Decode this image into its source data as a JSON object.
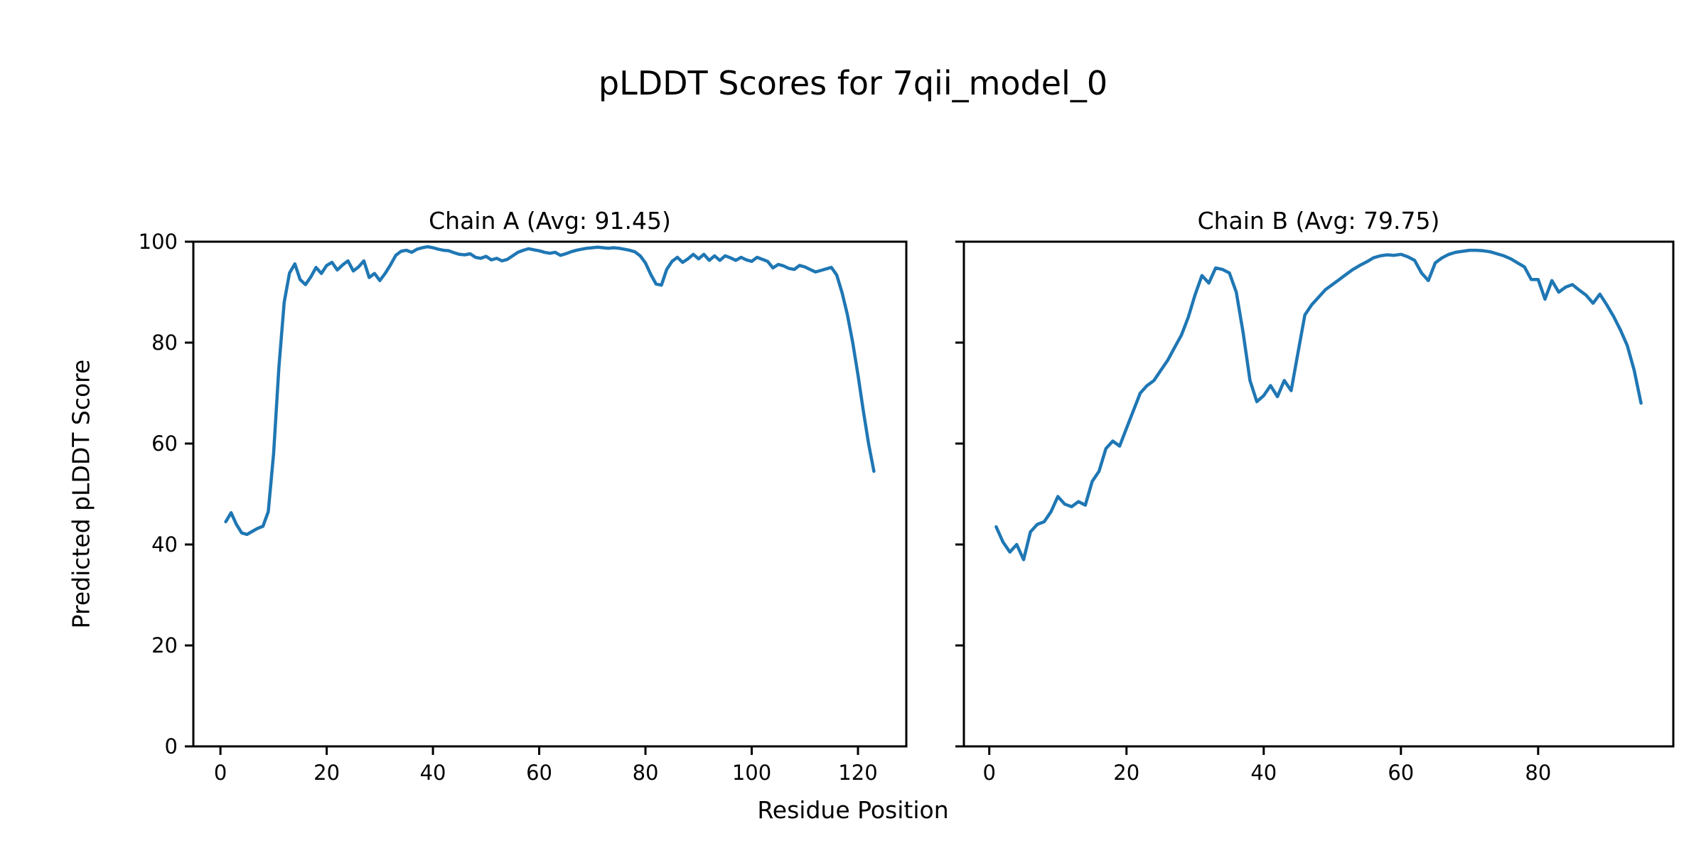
{
  "figure": {
    "title": "pLDDT Scores for 7qii_model_0",
    "xlabel": "Residue Position",
    "ylabel": "Predicted pLDDT Score",
    "line_color": "#1f77b4",
    "axis_color": "#000000",
    "background_color": "#ffffff"
  },
  "chart_data": [
    {
      "type": "line",
      "chain": "A",
      "title": "Chain A (Avg: 91.45)",
      "avg_plddt": 91.45,
      "xlabel": "Residue Position",
      "ylabel": "Predicted pLDDT Score",
      "xlim": [
        -5.1,
        129.1
      ],
      "ylim": [
        0,
        100
      ],
      "xticks": [
        0,
        20,
        40,
        60,
        80,
        100,
        120
      ],
      "yticks": [
        0,
        20,
        40,
        60,
        80,
        100
      ],
      "show_ytick_labels": true,
      "grid": false,
      "legend": "none",
      "x_start": 1,
      "x_step": 1,
      "values": [
        44.5,
        46.3,
        44.0,
        42.3,
        42.0,
        42.6,
        43.2,
        43.6,
        46.5,
        58.0,
        75.0,
        88.0,
        93.8,
        95.6,
        92.5,
        91.5,
        93.0,
        94.9,
        93.7,
        95.3,
        95.9,
        94.4,
        95.4,
        96.2,
        94.2,
        95.0,
        96.2,
        92.9,
        93.7,
        92.3,
        93.7,
        95.4,
        97.3,
        98.1,
        98.3,
        97.9,
        98.5,
        98.8,
        99.0,
        98.8,
        98.5,
        98.3,
        98.2,
        97.8,
        97.5,
        97.4,
        97.6,
        96.9,
        96.7,
        97.1,
        96.4,
        96.7,
        96.2,
        96.5,
        97.2,
        97.9,
        98.3,
        98.6,
        98.4,
        98.2,
        97.9,
        97.7,
        97.9,
        97.3,
        97.6,
        98.0,
        98.3,
        98.5,
        98.7,
        98.8,
        98.9,
        98.8,
        98.7,
        98.8,
        98.7,
        98.5,
        98.3,
        98.0,
        97.2,
        95.8,
        93.5,
        91.6,
        91.4,
        94.5,
        96.1,
        96.9,
        95.9,
        96.6,
        97.5,
        96.6,
        97.5,
        96.3,
        97.2,
        96.3,
        97.2,
        96.8,
        96.3,
        96.9,
        96.4,
        96.1,
        96.9,
        96.5,
        96.1,
        94.8,
        95.5,
        95.2,
        94.7,
        94.5,
        95.3,
        95.0,
        94.5,
        94.0,
        94.3,
        94.6,
        94.9,
        93.4,
        89.9,
        85.6,
        80.1,
        73.6,
        66.5,
        60.0,
        54.5
      ]
    },
    {
      "type": "line",
      "chain": "B",
      "title": "Chain B (Avg: 79.75)",
      "avg_plddt": 79.75,
      "xlabel": "Residue Position",
      "ylabel": "Predicted pLDDT Score",
      "xlim": [
        -3.7,
        99.7
      ],
      "ylim": [
        0,
        100
      ],
      "xticks": [
        0,
        20,
        40,
        60,
        80
      ],
      "yticks": [
        0,
        20,
        40,
        60,
        80,
        100
      ],
      "show_ytick_labels": false,
      "grid": false,
      "legend": "none",
      "x_start": 1,
      "x_step": 1,
      "values": [
        43.5,
        40.5,
        38.5,
        40.0,
        37.0,
        42.5,
        44.0,
        44.5,
        46.5,
        49.5,
        48.0,
        47.5,
        48.5,
        47.8,
        52.5,
        54.5,
        59.0,
        60.5,
        59.5,
        63.0,
        66.5,
        70.0,
        71.5,
        72.5,
        74.5,
        76.5,
        79.0,
        81.5,
        85.0,
        89.5,
        93.3,
        91.8,
        94.8,
        94.5,
        93.8,
        90.0,
        82.0,
        72.5,
        68.3,
        69.5,
        71.5,
        69.3,
        72.5,
        70.5,
        78.0,
        85.5,
        87.5,
        89.0,
        90.5,
        91.5,
        92.5,
        93.5,
        94.5,
        95.3,
        96.0,
        96.8,
        97.2,
        97.4,
        97.3,
        97.5,
        97.0,
        96.3,
        93.8,
        92.3,
        95.8,
        96.8,
        97.5,
        97.9,
        98.1,
        98.3,
        98.3,
        98.2,
        98.0,
        97.6,
        97.2,
        96.6,
        95.8,
        95.0,
        92.5,
        92.5,
        88.6,
        92.3,
        90.0,
        91.0,
        91.5,
        90.4,
        89.4,
        87.8,
        89.6,
        87.5,
        85.2,
        82.5,
        79.4,
        74.5,
        68.0
      ]
    }
  ]
}
